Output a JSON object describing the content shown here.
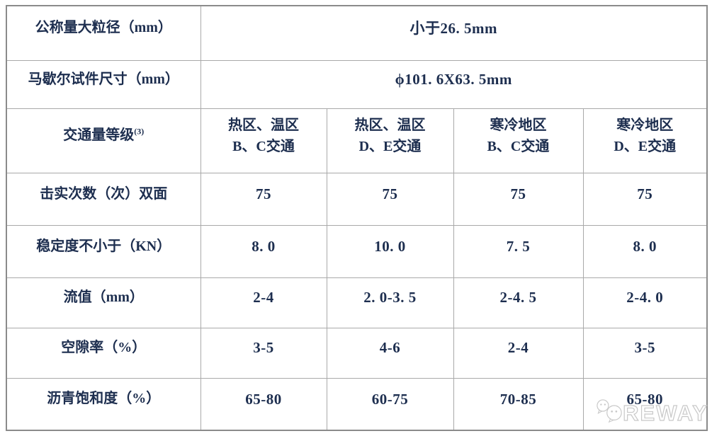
{
  "colors": {
    "text": "#1d2e4f",
    "border_inner": "#a9a9a9",
    "border_outer": "#8b8b8b",
    "watermark": "#c8c8c8",
    "background": "#ffffff"
  },
  "chart_data": {
    "type": "table",
    "merged_rows": [
      {
        "label": "公称量大粒径（mm）",
        "value": "小于26. 5mm"
      },
      {
        "label": "马歇尔试件尺寸（mm）",
        "value": "ϕ101. 6X63. 5mm"
      }
    ],
    "column_header": {
      "label": "交通量等级",
      "sup": "(3)",
      "columns": [
        "热区、温区\nB、C交通",
        "热区、温区\nD、E交通",
        "寒冷地区\nB、C交通",
        "寒冷地区\nD、E交通"
      ]
    },
    "data_rows": [
      {
        "label": "击实次数（次）双面",
        "values": [
          "75",
          "75",
          "75",
          "75"
        ]
      },
      {
        "label": "稳定度不小于（KN）",
        "values": [
          "8. 0",
          "10. 0",
          "7. 5",
          "8. 0"
        ]
      },
      {
        "label": "流值（mm）",
        "values": [
          "2-4",
          "2. 0-3. 5",
          "2-4. 5",
          "2-4. 0"
        ]
      },
      {
        "label": "空隙率（%）",
        "values": [
          "3-5",
          "4-6",
          "2-4",
          "3-5"
        ]
      },
      {
        "label": "沥青饱和度（%）",
        "values": [
          "65-80",
          "60-75",
          "70-85",
          "65-80"
        ]
      }
    ]
  },
  "watermark": {
    "brand": "REWAY",
    "logo": "chat-bubbles-icon"
  }
}
